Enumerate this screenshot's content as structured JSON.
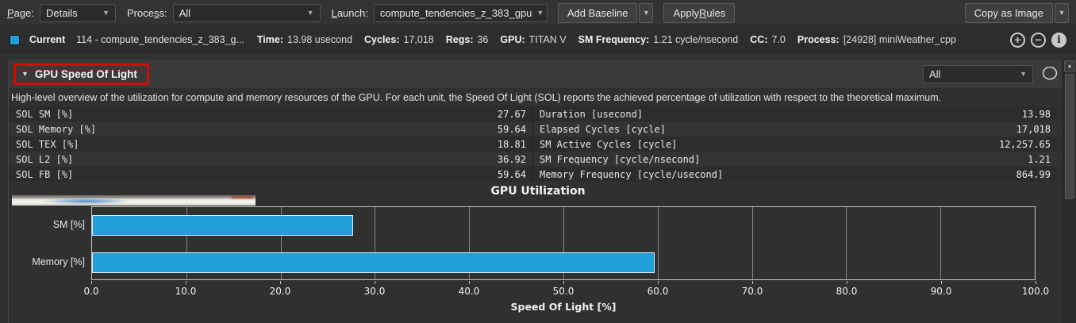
{
  "toolbar": {
    "page_key": "P",
    "page_rest": "age:",
    "page_value": "Details",
    "process_pre": "Proce",
    "process_key": "s",
    "process_rest": "s:",
    "process_value": "All",
    "launch_key": "L",
    "launch_rest": "aunch:",
    "launch_value": "compute_tendencies_z_383_gpu",
    "add_baseline": "Add Baseline",
    "apply_pre": "Apply ",
    "apply_key": "R",
    "apply_rest": "ules",
    "copy_as_image": "Copy as Image"
  },
  "current_row": {
    "swatch_color": "#219fdb",
    "label": "Current",
    "kernel": "114 - compute_tendencies_z_383_g...",
    "stats": [
      {
        "label": "Time:",
        "value": "13.98 usecond"
      },
      {
        "label": "Cycles:",
        "value": "17,018"
      },
      {
        "label": "Regs:",
        "value": "36"
      },
      {
        "label": "GPU:",
        "value": "TITAN V"
      },
      {
        "label": "SM Frequency:",
        "value": "1.21 cycle/nsecond"
      },
      {
        "label": "CC:",
        "value": "7.0"
      },
      {
        "label": "Process:",
        "value": "[24928] miniWeather_cpp"
      }
    ]
  },
  "section": {
    "title": "GPU Speed Of Light",
    "filter_value": "All",
    "description": "High-level overview of the utilization for compute and memory resources of the GPU. For each unit, the Speed Of Light (SOL) reports the achieved percentage of utilization with respect to the theoretical maximum.",
    "highlight_color": "#d10b0b"
  },
  "metrics_table": {
    "left": [
      {
        "label": "SOL SM [%]",
        "value": "27.67"
      },
      {
        "label": "SOL Memory [%]",
        "value": "59.64"
      },
      {
        "label": "SOL TEX [%]",
        "value": "18.81"
      },
      {
        "label": "SOL L2 [%]",
        "value": "36.92"
      },
      {
        "label": "SOL FB [%]",
        "value": "59.64"
      }
    ],
    "right": [
      {
        "label": "Duration [usecond]",
        "value": "13.98"
      },
      {
        "label": "Elapsed Cycles [cycle]",
        "value": "17,018"
      },
      {
        "label": "SM Active Cycles [cycle]",
        "value": "12,257.65"
      },
      {
        "label": "SM Frequency [cycle/nsecond]",
        "value": "1.21"
      },
      {
        "label": "Memory Frequency [cycle/usecond]",
        "value": "864.99"
      }
    ]
  },
  "chart_data": {
    "type": "bar",
    "orientation": "horizontal",
    "title": "GPU Utilization",
    "categories": [
      "SM [%]",
      "Memory [%]"
    ],
    "values": [
      27.67,
      59.64
    ],
    "xlabel": "Speed Of Light [%]",
    "xlim": [
      0,
      100
    ],
    "xticks": [
      0,
      10,
      20,
      30,
      40,
      50,
      60,
      70,
      80,
      90,
      100
    ],
    "tick_labels": [
      "0.0",
      "10.0",
      "20.0",
      "30.0",
      "40.0",
      "50.0",
      "60.0",
      "70.0",
      "80.0",
      "90.0",
      "100.0"
    ],
    "bar_color": "#219fdb",
    "grid": true,
    "legend": null
  }
}
